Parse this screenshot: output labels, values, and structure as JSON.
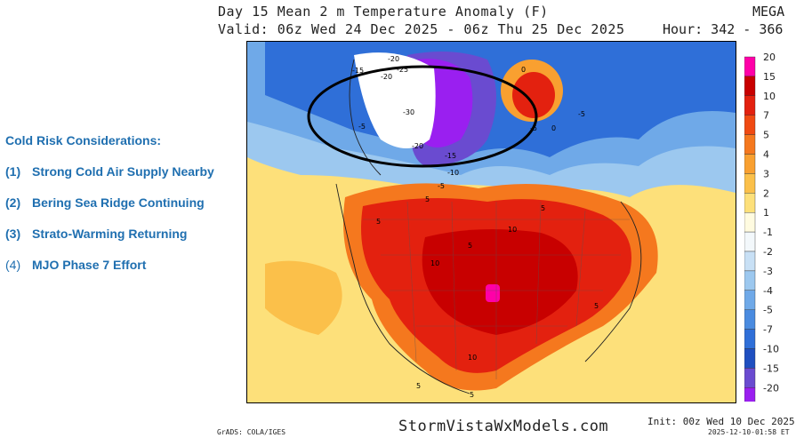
{
  "header": {
    "title": "Day 15 Mean 2 m Temperature Anomaly (F)",
    "model": "MEGA",
    "valid": "Valid: 06z Wed 24 Dec 2025 - 06z Thu 25 Dec 2025",
    "hour": "Hour: 342 - 366"
  },
  "sidebar": {
    "heading": "Cold Risk Considerations:",
    "items": [
      {
        "num": "(1)",
        "text": "Strong Cold Air Supply Nearby"
      },
      {
        "num": "(2)",
        "text": "Bering Sea Ridge Continuing"
      },
      {
        "num": "(3)",
        "text": "Strato-Warming Returning"
      },
      {
        "num": "(4)",
        "text": "MJO Phase 7 Effort"
      }
    ]
  },
  "colorbar": {
    "levels": [
      {
        "label": "20",
        "color": "#ff00a8"
      },
      {
        "label": "15",
        "color": "#c80000"
      },
      {
        "label": "10",
        "color": "#e3210f"
      },
      {
        "label": "7",
        "color": "#f04a12"
      },
      {
        "label": "5",
        "color": "#f5781e"
      },
      {
        "label": "4",
        "color": "#f9a030"
      },
      {
        "label": "3",
        "color": "#fbc04a"
      },
      {
        "label": "2",
        "color": "#fde07a"
      },
      {
        "label": "1",
        "color": "#fffbe0"
      },
      {
        "label": "-1",
        "color": "#f3f8fb"
      },
      {
        "label": "-2",
        "color": "#c8e0f5"
      },
      {
        "label": "-3",
        "color": "#9cc8ef"
      },
      {
        "label": "-4",
        "color": "#6fa9e8"
      },
      {
        "label": "-5",
        "color": "#4a8be0"
      },
      {
        "label": "-7",
        "color": "#2f6fd8"
      },
      {
        "label": "-10",
        "color": "#1f4fc0"
      },
      {
        "label": "-15",
        "color": "#6a4bd0"
      },
      {
        "label": "-20",
        "color": "#9a1ff0"
      }
    ]
  },
  "map_labels": [
    {
      "text": "-20"
    },
    {
      "text": "-15"
    },
    {
      "text": "-25"
    },
    {
      "text": "-20"
    },
    {
      "text": "-30"
    },
    {
      "text": "-20"
    },
    {
      "text": "-15"
    },
    {
      "text": "-10"
    },
    {
      "text": "-5"
    },
    {
      "text": "-5"
    },
    {
      "text": "-5"
    },
    {
      "text": "0"
    },
    {
      "text": "-5"
    },
    {
      "text": "0"
    },
    {
      "text": "5"
    },
    {
      "text": "5"
    },
    {
      "text": "10"
    },
    {
      "text": "10"
    },
    {
      "text": "5"
    },
    {
      "text": "10"
    },
    {
      "text": "5"
    },
    {
      "text": "5"
    },
    {
      "text": "5"
    },
    {
      "text": "5"
    }
  ],
  "footer": {
    "site": "StormVistaWxModels.com",
    "init": "Init: 00z Wed 10 Dec 2025",
    "stamp": "2025-12-10-01:58 ET",
    "grads": "GrADS: COLA/IGES"
  }
}
